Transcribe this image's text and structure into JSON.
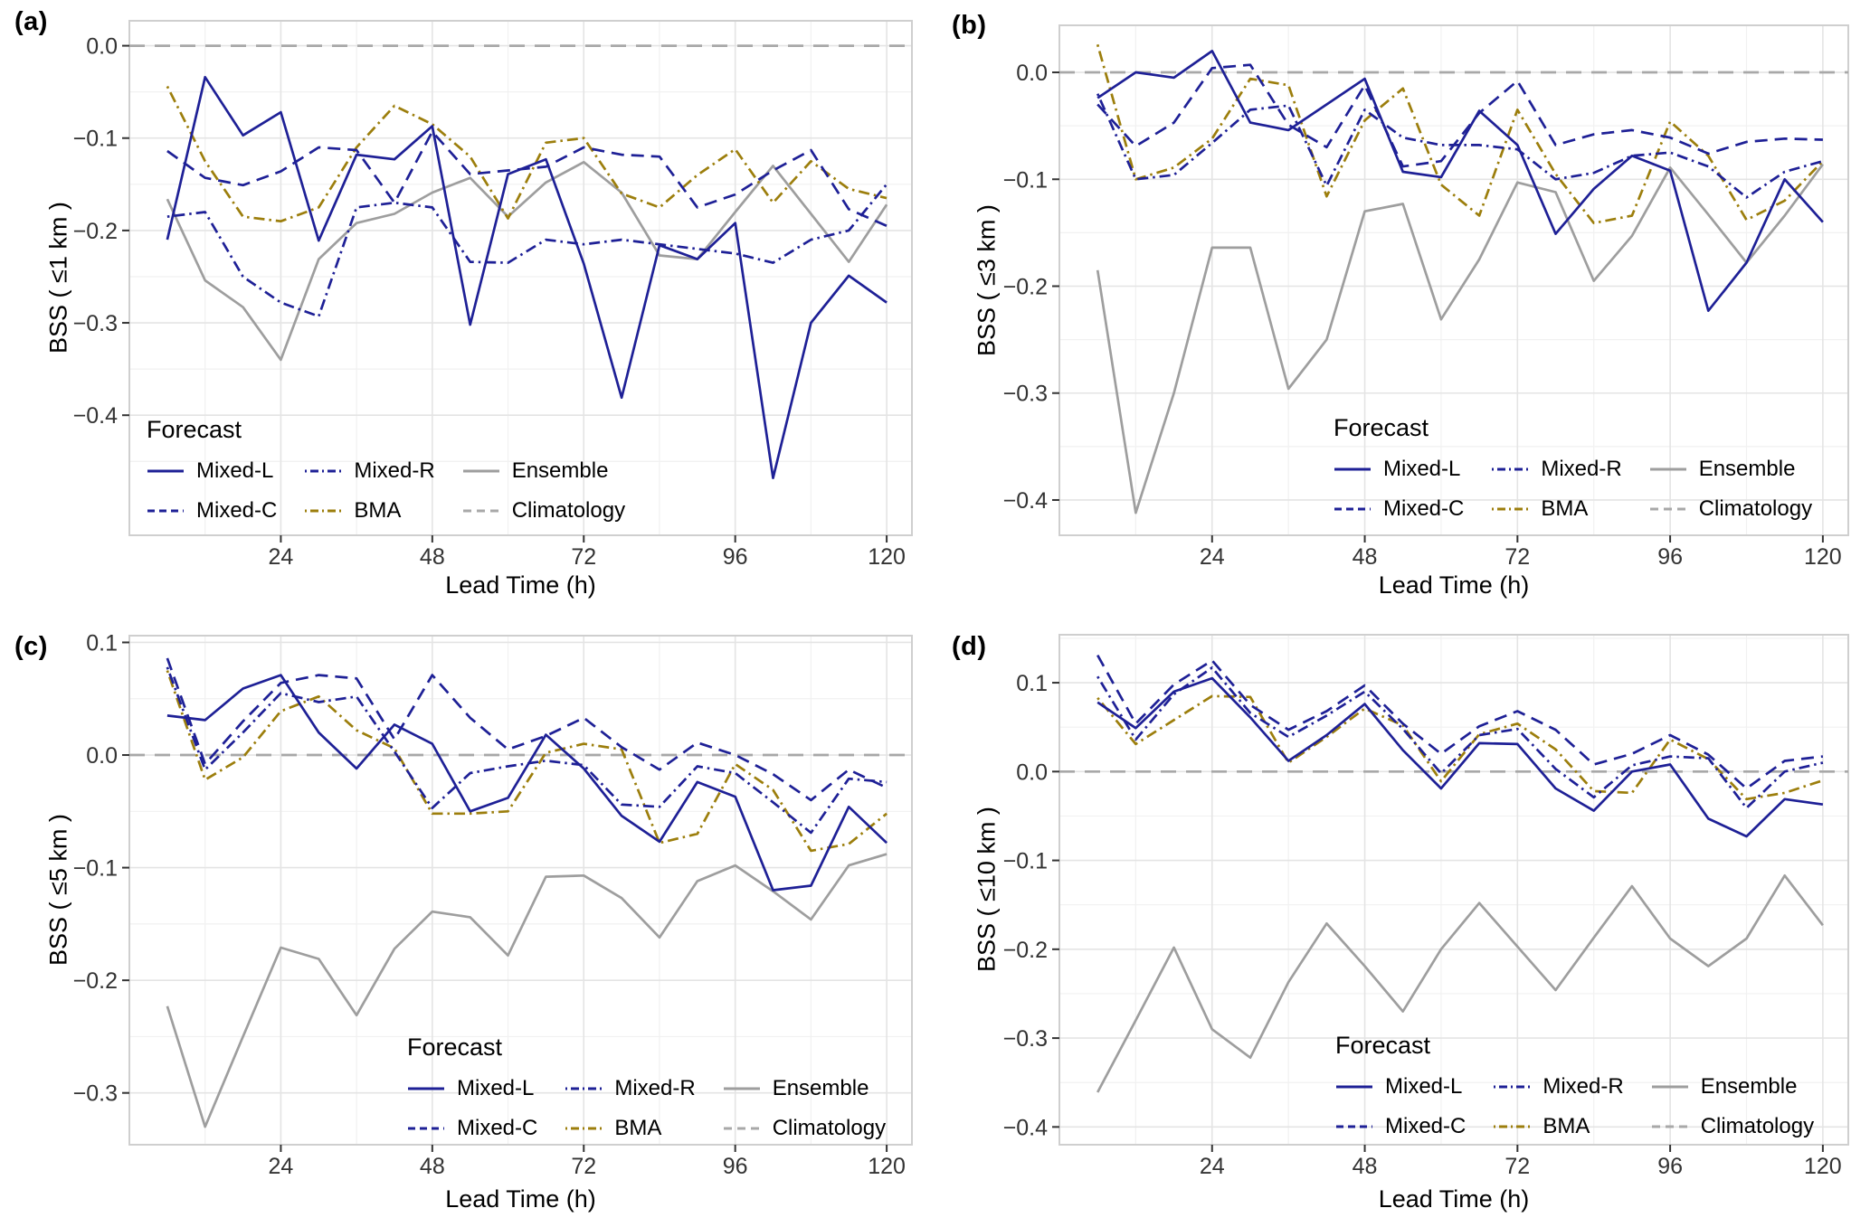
{
  "figure": {
    "legend_title": "Forecast",
    "x_axis_title": "Lead Time (h)",
    "background_color": "#ffffff",
    "grid_major_color": "#e4e4e4",
    "grid_minor_color": "#f1f1f1",
    "panel_border_color": "#cfcfcf",
    "tick_label_color": "#333333"
  },
  "series_meta": [
    {
      "name": "Mixed-L",
      "color": "#1E2096",
      "dash": "solid"
    },
    {
      "name": "Mixed-C",
      "color": "#1E2096",
      "dash": "longdash"
    },
    {
      "name": "Mixed-R",
      "color": "#1E2096",
      "dash": "dashdot"
    },
    {
      "name": "BMA",
      "color": "#9C7E0C",
      "dash": "dashdot"
    },
    {
      "name": "Ensemble",
      "color": "#9E9E9E",
      "dash": "solid"
    },
    {
      "name": "Climatology",
      "color": "#A8A8A8",
      "dash": "dash"
    }
  ],
  "chart_data": [
    {
      "type": "line",
      "panel_label": "(a)",
      "ylabel": "BSS ( ≤1 km )",
      "xlabel": "Lead Time (h)",
      "legend_position": "bottom-left",
      "x": [
        6,
        12,
        18,
        24,
        30,
        36,
        42,
        48,
        54,
        60,
        66,
        72,
        78,
        84,
        90,
        96,
        102,
        108,
        114,
        120
      ],
      "xticks": [
        24,
        48,
        72,
        96,
        120
      ],
      "yticks": [
        0.0,
        -0.1,
        -0.2,
        -0.3,
        -0.4
      ],
      "xlim": [
        0,
        124
      ],
      "ylim": [
        0.027,
        -0.53
      ],
      "series": [
        {
          "name": "Mixed-L",
          "values": [
            -0.21,
            -0.034,
            -0.097,
            -0.072,
            -0.211,
            -0.118,
            -0.123,
            -0.087,
            -0.302,
            -0.139,
            -0.123,
            -0.236,
            -0.381,
            -0.216,
            -0.231,
            -0.192,
            -0.468,
            -0.3,
            -0.249,
            -0.278
          ]
        },
        {
          "name": "Mixed-C",
          "values": [
            -0.114,
            -0.143,
            -0.151,
            -0.136,
            -0.11,
            -0.113,
            -0.17,
            -0.093,
            -0.139,
            -0.135,
            -0.131,
            -0.11,
            -0.118,
            -0.12,
            -0.175,
            -0.161,
            -0.135,
            -0.113,
            -0.177,
            -0.195
          ]
        },
        {
          "name": "Mixed-R",
          "values": [
            -0.185,
            -0.18,
            -0.25,
            -0.278,
            -0.293,
            -0.175,
            -0.17,
            -0.175,
            -0.234,
            -0.235,
            -0.21,
            -0.215,
            -0.21,
            -0.215,
            -0.22,
            -0.225,
            -0.235,
            -0.21,
            -0.2,
            -0.15
          ]
        },
        {
          "name": "BMA",
          "values": [
            -0.044,
            -0.125,
            -0.185,
            -0.19,
            -0.175,
            -0.11,
            -0.065,
            -0.085,
            -0.12,
            -0.187,
            -0.105,
            -0.1,
            -0.16,
            -0.175,
            -0.14,
            -0.112,
            -0.17,
            -0.125,
            -0.155,
            -0.165
          ]
        },
        {
          "name": "Ensemble",
          "values": [
            -0.166,
            -0.254,
            -0.283,
            -0.34,
            -0.231,
            -0.192,
            -0.182,
            -0.159,
            -0.143,
            -0.185,
            -0.148,
            -0.126,
            -0.159,
            -0.227,
            -0.231,
            -0.18,
            -0.13,
            -0.182,
            -0.234,
            -0.172
          ]
        },
        {
          "name": "Climatology",
          "constant": 0
        }
      ]
    },
    {
      "type": "line",
      "panel_label": "(b)",
      "ylabel": "BSS ( ≤3 km )",
      "xlabel": "Lead Time (h)",
      "legend_position": "bottom-center",
      "x": [
        6,
        12,
        18,
        24,
        30,
        36,
        42,
        48,
        54,
        60,
        66,
        72,
        78,
        84,
        90,
        96,
        102,
        108,
        114,
        120
      ],
      "xticks": [
        24,
        48,
        72,
        96,
        120
      ],
      "yticks": [
        0.0,
        -0.1,
        -0.2,
        -0.3,
        -0.4
      ],
      "xlim": [
        0,
        124
      ],
      "ylim": [
        0.044,
        -0.433
      ],
      "series": [
        {
          "name": "Mixed-L",
          "values": [
            -0.024,
            0.0,
            -0.005,
            0.02,
            -0.047,
            -0.054,
            -0.03,
            -0.006,
            -0.093,
            -0.098,
            -0.036,
            -0.068,
            -0.151,
            -0.109,
            -0.078,
            -0.092,
            -0.223,
            -0.178,
            -0.1,
            -0.14
          ]
        },
        {
          "name": "Mixed-C",
          "values": [
            -0.03,
            -0.069,
            -0.047,
            0.004,
            0.007,
            -0.049,
            -0.07,
            -0.012,
            -0.088,
            -0.083,
            -0.038,
            -0.008,
            -0.068,
            -0.058,
            -0.054,
            -0.061,
            -0.076,
            -0.065,
            -0.062,
            -0.063
          ]
        },
        {
          "name": "Mixed-R",
          "values": [
            -0.02,
            -0.1,
            -0.096,
            -0.066,
            -0.035,
            -0.031,
            -0.106,
            -0.035,
            -0.061,
            -0.068,
            -0.068,
            -0.072,
            -0.1,
            -0.094,
            -0.078,
            -0.075,
            -0.088,
            -0.117,
            -0.093,
            -0.083
          ]
        },
        {
          "name": "BMA",
          "values": [
            0.026,
            -0.1,
            -0.089,
            -0.062,
            -0.006,
            -0.012,
            -0.116,
            -0.045,
            -0.015,
            -0.105,
            -0.134,
            -0.035,
            -0.095,
            -0.141,
            -0.134,
            -0.046,
            -0.078,
            -0.138,
            -0.12,
            -0.083
          ]
        },
        {
          "name": "Ensemble",
          "values": [
            -0.185,
            -0.412,
            -0.3,
            -0.164,
            -0.164,
            -0.296,
            -0.25,
            -0.13,
            -0.123,
            -0.231,
            -0.175,
            -0.103,
            -0.112,
            -0.195,
            -0.153,
            -0.089,
            -0.133,
            -0.178,
            -0.134,
            -0.086
          ]
        },
        {
          "name": "Climatology",
          "constant": 0
        }
      ]
    },
    {
      "type": "line",
      "panel_label": "(c)",
      "ylabel": "BSS ( ≤5 km )",
      "xlabel": "Lead Time (h)",
      "legend_position": "bottom-center",
      "x": [
        6,
        12,
        18,
        24,
        30,
        36,
        42,
        48,
        54,
        60,
        66,
        72,
        78,
        84,
        90,
        96,
        102,
        108,
        114,
        120
      ],
      "xticks": [
        24,
        48,
        72,
        96,
        120
      ],
      "yticks": [
        0.1,
        0.0,
        -0.1,
        -0.2,
        -0.3
      ],
      "xlim": [
        0,
        124
      ],
      "ylim": [
        0.106,
        -0.346
      ],
      "series": [
        {
          "name": "Mixed-L",
          "values": [
            0.035,
            0.031,
            0.059,
            0.071,
            0.02,
            -0.012,
            0.027,
            0.01,
            -0.05,
            -0.038,
            0.018,
            -0.012,
            -0.054,
            -0.077,
            -0.024,
            -0.037,
            -0.12,
            -0.116,
            -0.046,
            -0.078
          ]
        },
        {
          "name": "Mixed-C",
          "values": [
            0.086,
            -0.008,
            0.03,
            0.064,
            0.071,
            0.068,
            0.014,
            0.071,
            0.033,
            0.005,
            0.017,
            0.033,
            0.007,
            -0.013,
            0.011,
            0.0,
            -0.017,
            -0.04,
            -0.013,
            -0.029
          ]
        },
        {
          "name": "Mixed-R",
          "values": [
            0.078,
            -0.013,
            0.02,
            0.055,
            0.047,
            0.052,
            0.003,
            -0.047,
            -0.016,
            -0.01,
            -0.005,
            -0.009,
            -0.044,
            -0.046,
            -0.01,
            -0.016,
            -0.042,
            -0.069,
            -0.021,
            -0.024
          ]
        },
        {
          "name": "BMA",
          "values": [
            0.075,
            -0.022,
            -0.002,
            0.039,
            0.052,
            0.022,
            0.006,
            -0.052,
            -0.052,
            -0.05,
            0.002,
            0.01,
            0.005,
            -0.078,
            -0.07,
            -0.008,
            -0.031,
            -0.085,
            -0.079,
            -0.052
          ]
        },
        {
          "name": "Ensemble",
          "values": [
            -0.223,
            -0.33,
            -0.25,
            -0.171,
            -0.181,
            -0.231,
            -0.172,
            -0.139,
            -0.144,
            -0.178,
            -0.108,
            -0.107,
            -0.127,
            -0.162,
            -0.112,
            -0.098,
            -0.121,
            -0.146,
            -0.098,
            -0.088
          ]
        },
        {
          "name": "Climatology",
          "constant": 0
        }
      ]
    },
    {
      "type": "line",
      "panel_label": "(d)",
      "ylabel": "BSS ( ≤10 km )",
      "xlabel": "Lead Time (h)",
      "legend_position": "bottom-center",
      "x": [
        6,
        12,
        18,
        24,
        30,
        36,
        42,
        48,
        54,
        60,
        66,
        72,
        78,
        84,
        90,
        96,
        102,
        108,
        114,
        120
      ],
      "xticks": [
        24,
        48,
        72,
        96,
        120
      ],
      "yticks": [
        0.1,
        0.0,
        -0.1,
        -0.2,
        -0.3,
        -0.4
      ],
      "xlim": [
        0,
        124
      ],
      "ylim": [
        0.154,
        -0.42
      ],
      "series": [
        {
          "name": "Mixed-L",
          "values": [
            0.078,
            0.049,
            0.09,
            0.105,
            0.061,
            0.012,
            0.041,
            0.076,
            0.024,
            -0.019,
            0.032,
            0.031,
            -0.019,
            -0.044,
            0.0,
            0.008,
            -0.053,
            -0.073,
            -0.031,
            -0.037
          ]
        },
        {
          "name": "Mixed-C",
          "values": [
            0.131,
            0.054,
            0.098,
            0.125,
            0.075,
            0.047,
            0.068,
            0.097,
            0.054,
            0.02,
            0.051,
            0.068,
            0.047,
            0.008,
            0.02,
            0.041,
            0.019,
            -0.019,
            0.012,
            0.017
          ]
        },
        {
          "name": "Mixed-R",
          "values": [
            0.107,
            0.036,
            0.087,
            0.117,
            0.066,
            0.039,
            0.063,
            0.09,
            0.048,
            -0.002,
            0.041,
            0.048,
            0.003,
            -0.029,
            0.007,
            0.017,
            0.015,
            -0.041,
            0.0,
            0.01
          ]
        },
        {
          "name": "BMA",
          "values": [
            0.083,
            0.031,
            0.058,
            0.085,
            0.084,
            0.01,
            0.039,
            0.071,
            0.052,
            -0.011,
            0.042,
            0.054,
            0.025,
            -0.022,
            -0.024,
            0.036,
            0.014,
            -0.031,
            -0.024,
            -0.01
          ]
        },
        {
          "name": "Ensemble",
          "values": [
            -0.361,
            -0.28,
            -0.198,
            -0.29,
            -0.322,
            -0.237,
            -0.171,
            -0.219,
            -0.27,
            -0.2,
            -0.148,
            -0.197,
            -0.246,
            -0.187,
            -0.129,
            -0.188,
            -0.219,
            -0.188,
            -0.117,
            -0.173
          ]
        },
        {
          "name": "Climatology",
          "constant": 0
        }
      ]
    }
  ]
}
